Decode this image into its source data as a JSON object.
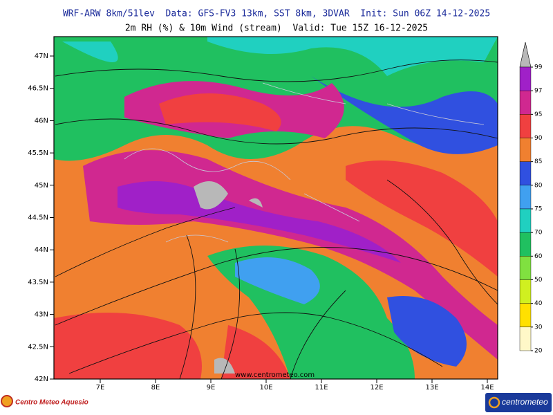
{
  "header": {
    "title": "WRF-ARW 8km/51lev  Data: GFS-FV3 13km, SST 8km, 3DVAR  Init: Sun 06Z 14-12-2025",
    "subtitle": "2m RH (%) & 10m Wind (stream)  Valid: Tue 15Z 16-12-2025"
  },
  "map": {
    "lat_labels": [
      "42N",
      "42.5N",
      "43N",
      "43.5N",
      "44N",
      "44.5N",
      "45N",
      "45.5N",
      "46N",
      "46.5N",
      "47N"
    ],
    "lon_labels": [
      "7E",
      "8E",
      "9E",
      "10E",
      "11E",
      "12E",
      "13E",
      "14E"
    ],
    "watermark": "www.centrometeo.com"
  },
  "colorbar": {
    "ticks": [
      99,
      97,
      95,
      90,
      85,
      80,
      75,
      70,
      60,
      50,
      40,
      30,
      20
    ],
    "colors": [
      "#a020c8",
      "#d02890",
      "#f04040",
      "#f08030",
      "#3050e0",
      "#40a0f0",
      "#20d0c0",
      "#20c060",
      "#80e040",
      "#d0f020",
      "#ffe000",
      "#fff8c8"
    ],
    "over_color": "#b8b8b8"
  },
  "footer": {
    "left_logo": "Centro Meteo Aquesio",
    "right_logo": "centrometeo"
  }
}
